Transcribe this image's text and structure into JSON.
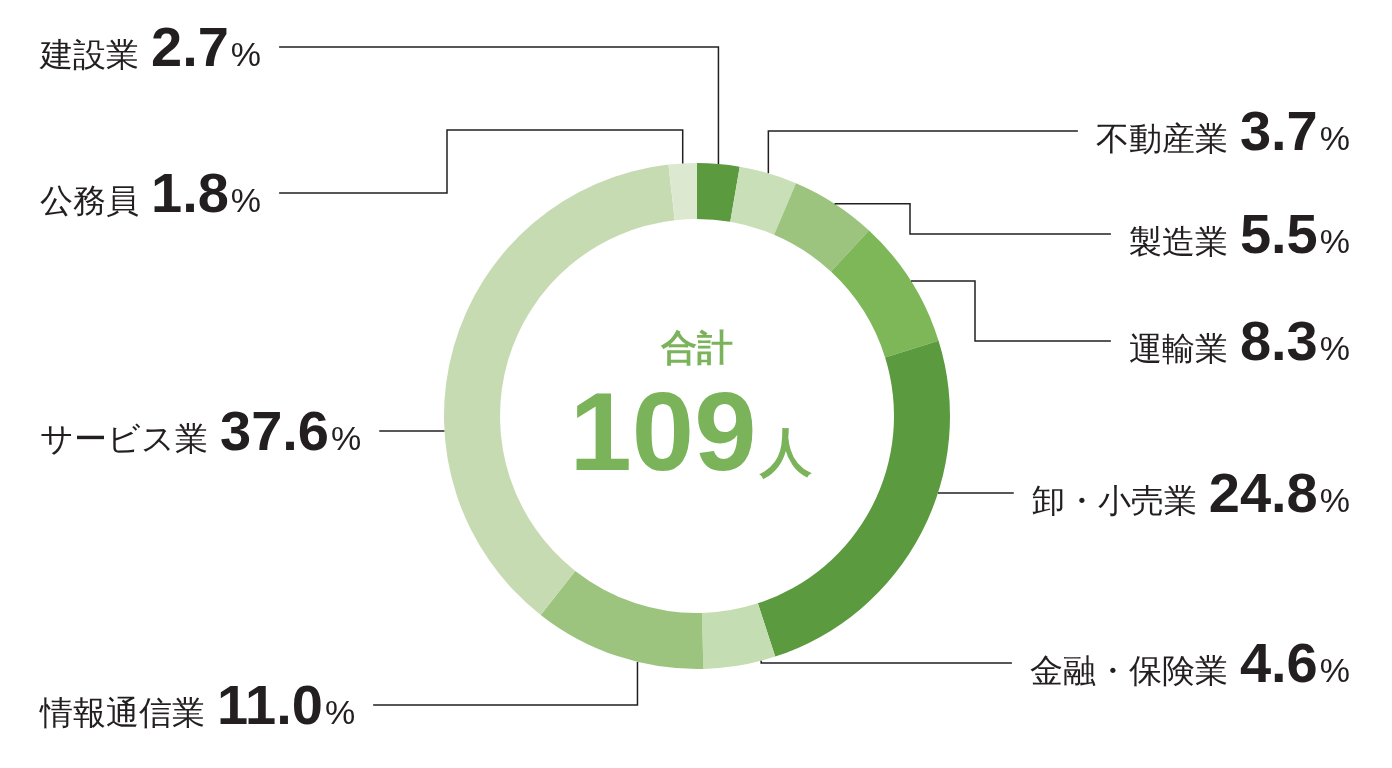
{
  "chart_data": {
    "type": "donut",
    "categories": [
      "建設業",
      "不動産業",
      "製造業",
      "運輸業",
      "卸・小売業",
      "金融・保険業",
      "情報通信業",
      "サービス業",
      "公務員"
    ],
    "values": [
      2.7,
      3.7,
      5.5,
      8.3,
      24.8,
      4.6,
      11.0,
      37.6,
      1.8
    ],
    "colors": [
      "#5b9a3e",
      "#c9dfb7",
      "#9cc47f",
      "#7db757",
      "#5b9a3e",
      "#c5ddb2",
      "#9cc47f",
      "#c6dbb2",
      "#dce9d0"
    ],
    "value_labels": [
      "2.7%",
      "3.7%",
      "5.5%",
      "8.3%",
      "24.8%",
      "4.6%",
      "11.0%",
      "37.6%",
      "1.8%"
    ],
    "annotations": [
      "合計",
      "109人"
    ]
  }
}
